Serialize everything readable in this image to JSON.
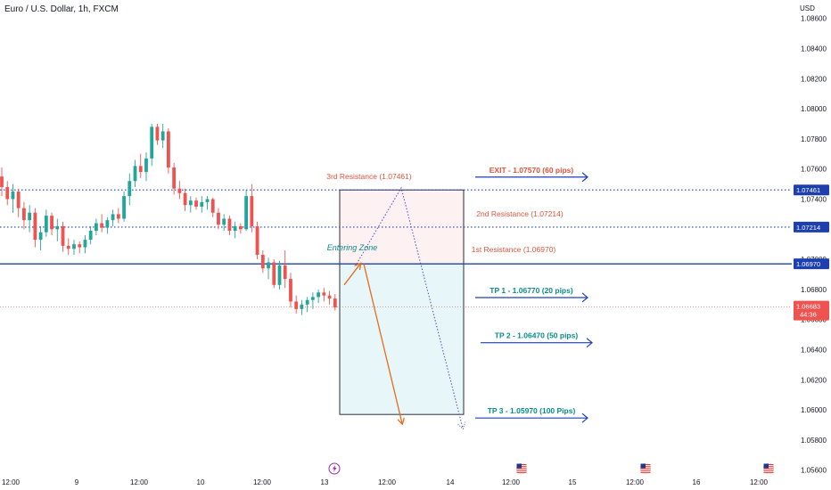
{
  "chart_data": {
    "type": "candlestick",
    "title": "Euro / U.S. Dollar, 1h, FXCM",
    "currency_label": "USD",
    "y_ticks": [
      "1.08600",
      "1.08400",
      "1.08200",
      "1.08000",
      "1.07800",
      "1.07600",
      "1.07400",
      "1.07200",
      "1.07000",
      "1.06800",
      "1.06600",
      "1.06400",
      "1.06200",
      "1.06000",
      "1.05800",
      "1.05600"
    ],
    "x_ticks": [
      "12:00",
      "9",
      "12:00",
      "10",
      "12:00",
      "13",
      "12:00",
      "14",
      "12:00",
      "15",
      "12:00",
      "16",
      "12:00"
    ],
    "ylim": [
      1.0548,
      1.0872
    ],
    "candles": [
      {
        "o": 1.0755,
        "h": 1.0761,
        "l": 1.0742,
        "c": 1.0748
      },
      {
        "o": 1.0748,
        "h": 1.0752,
        "l": 1.0736,
        "c": 1.074
      },
      {
        "o": 1.074,
        "h": 1.075,
        "l": 1.0731,
        "c": 1.0745
      },
      {
        "o": 1.0745,
        "h": 1.0747,
        "l": 1.0728,
        "c": 1.0734
      },
      {
        "o": 1.0734,
        "h": 1.0738,
        "l": 1.072,
        "c": 1.0726
      },
      {
        "o": 1.0726,
        "h": 1.0736,
        "l": 1.0718,
        "c": 1.0731
      },
      {
        "o": 1.0731,
        "h": 1.0734,
        "l": 1.0708,
        "c": 1.0713
      },
      {
        "o": 1.0713,
        "h": 1.0722,
        "l": 1.0706,
        "c": 1.0718
      },
      {
        "o": 1.0718,
        "h": 1.0733,
        "l": 1.0715,
        "c": 1.0729
      },
      {
        "o": 1.0729,
        "h": 1.0731,
        "l": 1.0716,
        "c": 1.072
      },
      {
        "o": 1.072,
        "h": 1.0727,
        "l": 1.0712,
        "c": 1.0722
      },
      {
        "o": 1.0722,
        "h": 1.0725,
        "l": 1.0705,
        "c": 1.0709
      },
      {
        "o": 1.0709,
        "h": 1.0714,
        "l": 1.0703,
        "c": 1.0707
      },
      {
        "o": 1.0707,
        "h": 1.0713,
        "l": 1.0703,
        "c": 1.071
      },
      {
        "o": 1.071,
        "h": 1.0712,
        "l": 1.0704,
        "c": 1.0708
      },
      {
        "o": 1.0708,
        "h": 1.0716,
        "l": 1.0704,
        "c": 1.0713
      },
      {
        "o": 1.0713,
        "h": 1.0722,
        "l": 1.071,
        "c": 1.0719
      },
      {
        "o": 1.0719,
        "h": 1.0727,
        "l": 1.0716,
        "c": 1.0724
      },
      {
        "o": 1.0724,
        "h": 1.073,
        "l": 1.0718,
        "c": 1.0721
      },
      {
        "o": 1.0721,
        "h": 1.0728,
        "l": 1.0717,
        "c": 1.0726
      },
      {
        "o": 1.0726,
        "h": 1.0733,
        "l": 1.0722,
        "c": 1.073
      },
      {
        "o": 1.073,
        "h": 1.0734,
        "l": 1.0724,
        "c": 1.0727
      },
      {
        "o": 1.0727,
        "h": 1.0745,
        "l": 1.0725,
        "c": 1.0742
      },
      {
        "o": 1.0742,
        "h": 1.0757,
        "l": 1.0736,
        "c": 1.0752
      },
      {
        "o": 1.0752,
        "h": 1.0766,
        "l": 1.0748,
        "c": 1.0762
      },
      {
        "o": 1.0762,
        "h": 1.077,
        "l": 1.0754,
        "c": 1.0758
      },
      {
        "o": 1.0758,
        "h": 1.0771,
        "l": 1.0752,
        "c": 1.0767
      },
      {
        "o": 1.0767,
        "h": 1.079,
        "l": 1.0762,
        "c": 1.0788
      },
      {
        "o": 1.0788,
        "h": 1.079,
        "l": 1.0776,
        "c": 1.0779
      },
      {
        "o": 1.0779,
        "h": 1.079,
        "l": 1.0774,
        "c": 1.0785
      },
      {
        "o": 1.0785,
        "h": 1.0787,
        "l": 1.0757,
        "c": 1.0761
      },
      {
        "o": 1.0761,
        "h": 1.0764,
        "l": 1.0743,
        "c": 1.0747
      },
      {
        "o": 1.0747,
        "h": 1.0752,
        "l": 1.074,
        "c": 1.0744
      },
      {
        "o": 1.0744,
        "h": 1.0747,
        "l": 1.0732,
        "c": 1.0736
      },
      {
        "o": 1.0736,
        "h": 1.0742,
        "l": 1.0731,
        "c": 1.0739
      },
      {
        "o": 1.0739,
        "h": 1.0741,
        "l": 1.0733,
        "c": 1.0735
      },
      {
        "o": 1.0735,
        "h": 1.0742,
        "l": 1.0731,
        "c": 1.0738
      },
      {
        "o": 1.0738,
        "h": 1.0742,
        "l": 1.0733,
        "c": 1.074
      },
      {
        "o": 1.074,
        "h": 1.0741,
        "l": 1.0728,
        "c": 1.0731
      },
      {
        "o": 1.0731,
        "h": 1.0734,
        "l": 1.072,
        "c": 1.0723
      },
      {
        "o": 1.0723,
        "h": 1.073,
        "l": 1.0719,
        "c": 1.0727
      },
      {
        "o": 1.0727,
        "h": 1.0729,
        "l": 1.0716,
        "c": 1.0719
      },
      {
        "o": 1.0719,
        "h": 1.0725,
        "l": 1.0714,
        "c": 1.0722
      },
      {
        "o": 1.0722,
        "h": 1.0724,
        "l": 1.0717,
        "c": 1.072
      },
      {
        "o": 1.072,
        "h": 1.0746,
        "l": 1.0719,
        "c": 1.0742
      },
      {
        "o": 1.0742,
        "h": 1.075,
        "l": 1.0718,
        "c": 1.0722
      },
      {
        "o": 1.0722,
        "h": 1.0725,
        "l": 1.07,
        "c": 1.0703
      },
      {
        "o": 1.0703,
        "h": 1.0706,
        "l": 1.0691,
        "c": 1.0694
      },
      {
        "o": 1.0694,
        "h": 1.0701,
        "l": 1.0687,
        "c": 1.0698
      },
      {
        "o": 1.0698,
        "h": 1.07,
        "l": 1.0681,
        "c": 1.0683
      },
      {
        "o": 1.0683,
        "h": 1.0699,
        "l": 1.068,
        "c": 1.0696
      },
      {
        "o": 1.0696,
        "h": 1.0706,
        "l": 1.0681,
        "c": 1.0687
      },
      {
        "o": 1.0687,
        "h": 1.0691,
        "l": 1.0668,
        "c": 1.0672
      },
      {
        "o": 1.0672,
        "h": 1.0676,
        "l": 1.0664,
        "c": 1.0667
      },
      {
        "o": 1.0667,
        "h": 1.0673,
        "l": 1.0663,
        "c": 1.067
      },
      {
        "o": 1.067,
        "h": 1.0675,
        "l": 1.0665,
        "c": 1.0673
      },
      {
        "o": 1.0673,
        "h": 1.0678,
        "l": 1.0667,
        "c": 1.0675
      },
      {
        "o": 1.0675,
        "h": 1.068,
        "l": 1.0671,
        "c": 1.0678
      },
      {
        "o": 1.0678,
        "h": 1.0681,
        "l": 1.0672,
        "c": 1.0676
      },
      {
        "o": 1.0676,
        "h": 1.0679,
        "l": 1.067,
        "c": 1.0674
      },
      {
        "o": 1.0674,
        "h": 1.0677,
        "l": 1.0666,
        "c": 1.0668
      }
    ],
    "levels": [
      {
        "label": "3rd Resistance (1.07461)",
        "price": 1.07461,
        "tag": "1.07461",
        "style": "dotted"
      },
      {
        "label": "2nd Resistance (1.07214)",
        "price": 1.07214,
        "tag": "1.07214",
        "style": "dotted"
      },
      {
        "label": "1st Resistance (1.06970)",
        "price": 1.0697,
        "tag": "1.06970",
        "style": "solid"
      }
    ],
    "current_price": {
      "value": "1.06683",
      "countdown": "44:36"
    },
    "entering_zone_label": "Entering Zone",
    "zone": {
      "top": 1.07461,
      "entry": 1.0697,
      "bottom": 1.0597
    },
    "targets": [
      {
        "label": "EXIT - 1.07570 (60 pips)",
        "price": 1.0757,
        "color": "#e0533c"
      },
      {
        "label": "TP 1 - 1.06770 (20 pips)",
        "price": 1.0677,
        "color": "#0b8a8a"
      },
      {
        "label": "TP 2 - 1.06470 (50 pips)",
        "price": 1.0647,
        "color": "#0b8a8a"
      },
      {
        "label": "TP 3 - 1.05970 (100 Pips)",
        "price": 1.0597,
        "color": "#0b8a8a"
      }
    ],
    "colors": {
      "up": "#22a69a",
      "down": "#ef5350",
      "level": "#1e40af",
      "arrow_blue": "#1e4fb8",
      "arrow_orange": "#e86a1c",
      "path_dotted": "#4a4ec8"
    },
    "events": [
      "lightning-icon",
      "us-flag-icon",
      "us-flag-icon",
      "us-flag-icon"
    ]
  }
}
